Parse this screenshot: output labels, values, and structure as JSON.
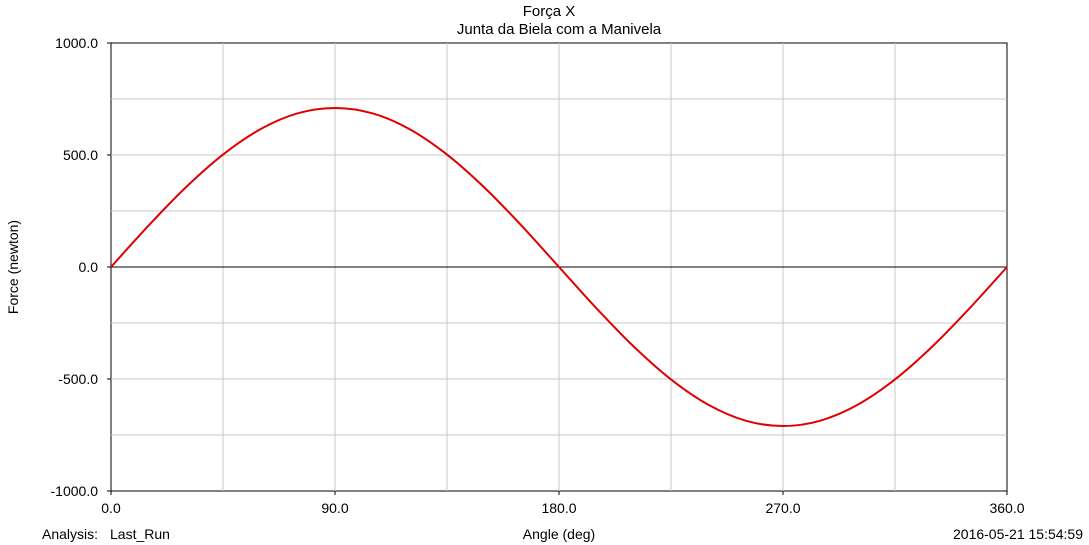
{
  "chart_data": {
    "type": "line",
    "title": "Força X",
    "subtitle": "Junta da Biela com a Manivela",
    "xlabel": "Angle (deg)",
    "ylabel": "Force (newton)",
    "xlim": [
      0,
      360
    ],
    "ylim": [
      -1000,
      1000
    ],
    "x_ticks": [
      0,
      90,
      180,
      270,
      360
    ],
    "x_tick_labels": [
      "0.0",
      "90.0",
      "180.0",
      "270.0",
      "360.0"
    ],
    "x_minor_gridlines": [
      45,
      135,
      225,
      315
    ],
    "y_ticks": [
      1000,
      500,
      0,
      -500,
      -1000
    ],
    "y_tick_labels": [
      "1000.0",
      "500.0",
      "0.0",
      "-500.0",
      "-1000.0"
    ],
    "y_minor_gridlines": [
      750,
      250,
      -250,
      -750
    ],
    "grid": true,
    "zero_line": true,
    "series": [
      {
        "color": "#e00000",
        "x": [
          0,
          15,
          30,
          45,
          60,
          75,
          90,
          105,
          120,
          135,
          150,
          165,
          180,
          195,
          210,
          225,
          240,
          255,
          270,
          285,
          300,
          315,
          330,
          345,
          360
        ],
        "y": [
          0,
          184,
          355,
          502,
          615,
          686,
          710,
          686,
          615,
          502,
          355,
          184,
          0,
          -184,
          -355,
          -502,
          -615,
          -686,
          -710,
          -686,
          -615,
          -502,
          -355,
          -184,
          0
        ]
      }
    ]
  },
  "footer": {
    "analysis_label": "Analysis:",
    "analysis_name": "Last_Run",
    "timestamp": "2016-05-21 15:54:59"
  }
}
